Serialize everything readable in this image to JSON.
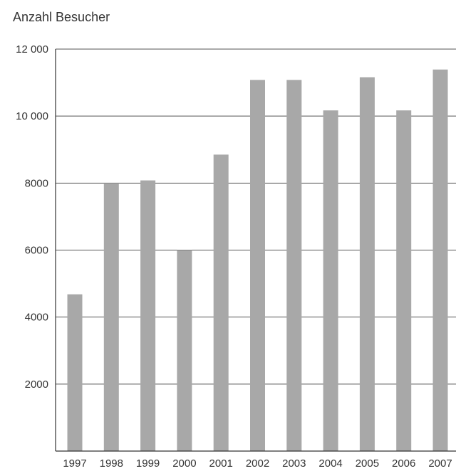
{
  "chart_data": {
    "type": "bar",
    "title": "",
    "ylabel": "Anzahl Besucher",
    "xlabel": "",
    "categories": [
      "1997",
      "1998",
      "1999",
      "2000",
      "2001",
      "2002",
      "2003",
      "2004",
      "2005",
      "2006",
      "2007"
    ],
    "values": [
      4680,
      8000,
      8080,
      6000,
      8850,
      11080,
      11080,
      10170,
      11160,
      10170,
      11390
    ],
    "ylim": [
      0,
      12000
    ],
    "yticks": [
      2000,
      4000,
      6000,
      8000,
      10000,
      12000
    ],
    "ytick_labels": [
      "2000",
      "4000",
      "6000",
      "8000",
      "10 000",
      "12 000"
    ],
    "grid": true,
    "colors": {
      "bar": "#a8a8a8",
      "grid": "#555555",
      "axis": "#333333"
    }
  }
}
